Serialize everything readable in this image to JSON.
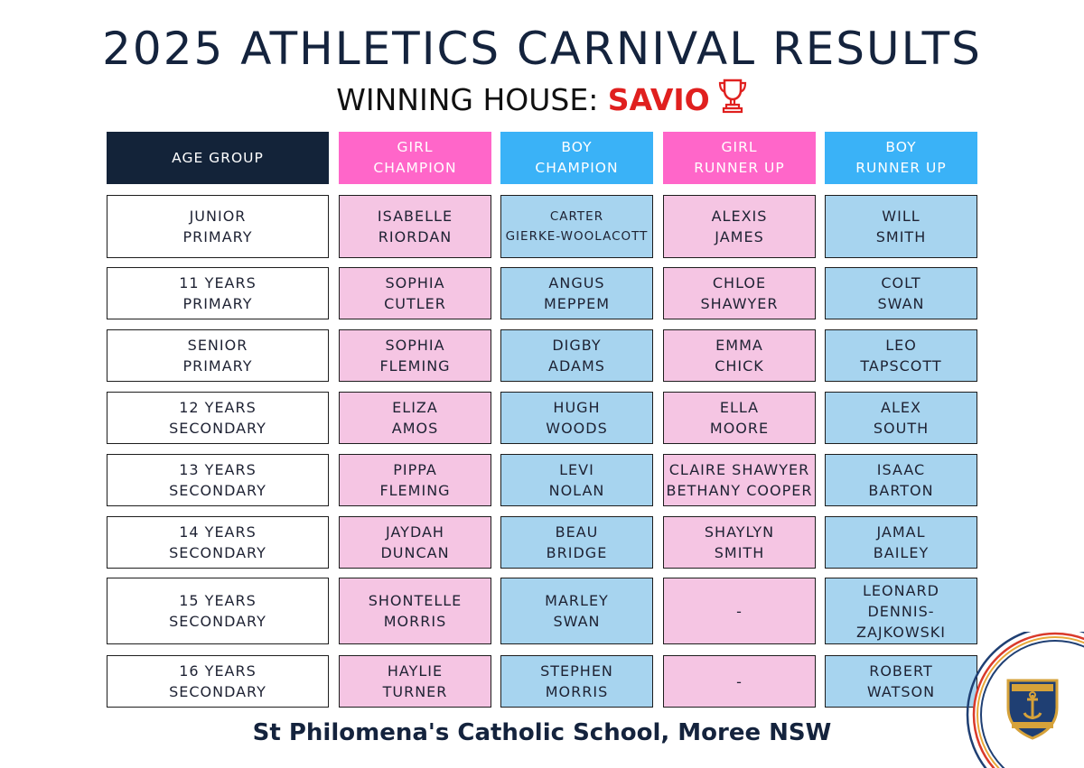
{
  "title": "2025 ATHLETICS CARNIVAL RESULTS",
  "subtitle": {
    "prefix": "WINNING HOUSE: ",
    "house": "SAVIO",
    "icon": "trophy-icon"
  },
  "headers": {
    "age": "AGE GROUP",
    "girl_champ": [
      "GIRL",
      "CHAMPION"
    ],
    "boy_champ": [
      "BOY",
      "CHAMPION"
    ],
    "girl_runner": [
      "GIRL",
      "RUNNER UP"
    ],
    "boy_runner": [
      "BOY",
      "RUNNER UP"
    ]
  },
  "rows": [
    {
      "age": [
        "JUNIOR",
        "PRIMARY"
      ],
      "girl_champ": [
        "ISABELLE",
        "RIORDAN"
      ],
      "boy_champ": [
        "CARTER",
        "GIERKE-WOOLACOTT"
      ],
      "girl_runner": [
        "ALEXIS",
        "JAMES"
      ],
      "boy_runner": [
        "WILL",
        "SMITH"
      ]
    },
    {
      "age": [
        "11 YEARS",
        "PRIMARY"
      ],
      "girl_champ": [
        "SOPHIA",
        "CUTLER"
      ],
      "boy_champ": [
        "ANGUS",
        "MEPPEM"
      ],
      "girl_runner": [
        "CHLOE",
        "SHAWYER"
      ],
      "boy_runner": [
        "COLT",
        "SWAN"
      ]
    },
    {
      "age": [
        "SENIOR",
        "PRIMARY"
      ],
      "girl_champ": [
        "SOPHIA",
        "FLEMING"
      ],
      "boy_champ": [
        "DIGBY",
        "ADAMS"
      ],
      "girl_runner": [
        "EMMA",
        "CHICK"
      ],
      "boy_runner": [
        "LEO",
        "TAPSCOTT"
      ]
    },
    {
      "age": [
        "12 YEARS",
        "SECONDARY"
      ],
      "girl_champ": [
        "ELIZA",
        "AMOS"
      ],
      "boy_champ": [
        "HUGH",
        "WOODS"
      ],
      "girl_runner": [
        "ELLA",
        "MOORE"
      ],
      "boy_runner": [
        "ALEX",
        "SOUTH"
      ]
    },
    {
      "age": [
        "13 YEARS",
        "SECONDARY"
      ],
      "girl_champ": [
        "PIPPA",
        "FLEMING"
      ],
      "boy_champ": [
        "LEVI",
        "NOLAN"
      ],
      "girl_runner": [
        "CLAIRE SHAWYER",
        "BETHANY COOPER"
      ],
      "boy_runner": [
        "ISAAC",
        "BARTON"
      ]
    },
    {
      "age": [
        "14 YEARS",
        "SECONDARY"
      ],
      "girl_champ": [
        "JAYDAH",
        "DUNCAN"
      ],
      "boy_champ": [
        "BEAU",
        "BRIDGE"
      ],
      "girl_runner": [
        "SHAYLYN",
        "SMITH"
      ],
      "boy_runner": [
        "JAMAL",
        "BAILEY"
      ]
    },
    {
      "age": [
        "15 YEARS",
        "SECONDARY"
      ],
      "girl_champ": [
        "SHONTELLE",
        "MORRIS"
      ],
      "boy_champ": [
        "MARLEY",
        "SWAN"
      ],
      "girl_runner": [
        "-"
      ],
      "boy_runner": [
        "LEONARD",
        "DENNIS-",
        "ZAJKOWSKI"
      ]
    },
    {
      "age": [
        "16 YEARS",
        "SECONDARY"
      ],
      "girl_champ": [
        "HAYLIE",
        "TURNER"
      ],
      "boy_champ": [
        "STEPHEN",
        "MORRIS"
      ],
      "girl_runner": [
        "-"
      ],
      "boy_runner": [
        "ROBERT",
        "WATSON"
      ]
    }
  ],
  "footer": "St Philomena's Catholic School, Moree NSW",
  "colors": {
    "navy": "#132339",
    "pink_header": "#ff66c9",
    "blue_header": "#3ab2f7",
    "pink_cell": "#f5c5e3",
    "blue_cell": "#a7d4ef",
    "house_red": "#e0201f"
  },
  "logo": {
    "icon": "school-crest-icon"
  }
}
